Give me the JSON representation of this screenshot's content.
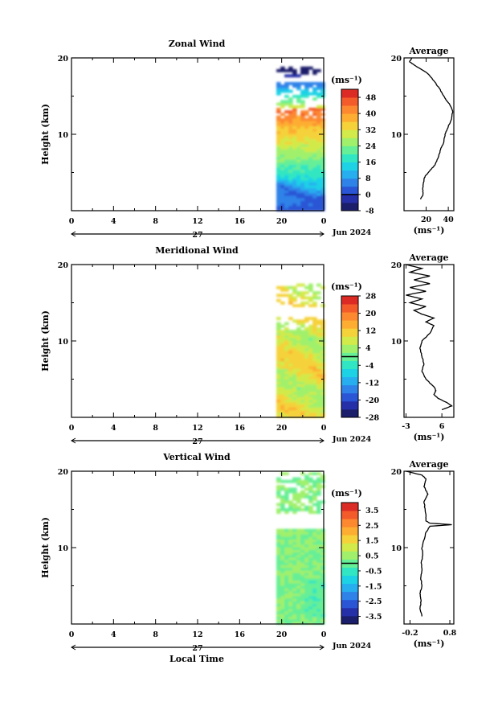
{
  "figure": {
    "x_label": "Local Time",
    "date_label": "Jun 2024",
    "day_label": "27",
    "x_ticks": [
      "0",
      "4",
      "8",
      "12",
      "16",
      "20",
      "0"
    ],
    "y_label": "Height (km)",
    "y_ticks": [
      "10",
      "20"
    ],
    "colorbar_unit": "(ms⁻¹)",
    "profile_title": "Average",
    "profile_unit": "(ms⁻¹)"
  },
  "chart_data": [
    {
      "type": "heatmap",
      "title": "Zonal Wind",
      "x_range_hours": [
        0,
        24
      ],
      "y_range_km": [
        0,
        20
      ],
      "data_time_range_hours": [
        19.5,
        24
      ],
      "colorbar": {
        "range": [
          -8,
          52
        ],
        "tick_labels": [
          "-8",
          "0",
          "8",
          "16",
          "24",
          "32",
          "40",
          "48"
        ],
        "colors": [
          "#1a1e6b",
          "#252fa8",
          "#2a56d6",
          "#2e82e8",
          "#27aeee",
          "#1ed2e6",
          "#31e6c2",
          "#66ef96",
          "#a0f06c",
          "#d2ea4a",
          "#f5d23a",
          "#fdae32",
          "#fc8830",
          "#f45b2b",
          "#dc2b25"
        ]
      },
      "profile": {
        "title": "Average",
        "x_range": [
          0,
          45
        ],
        "x_tick_labels": [
          "20",
          "40"
        ],
        "height_km": [
          1.5,
          2,
          3,
          4,
          4.5,
          5,
          5.5,
          6,
          7,
          8,
          9,
          10,
          11,
          12,
          13,
          14,
          14.5,
          15,
          16,
          17,
          18,
          19,
          19.5,
          20
        ],
        "values": [
          15,
          17,
          17,
          18,
          19,
          22,
          25,
          28,
          31,
          33,
          36,
          37,
          40,
          43,
          44,
          41,
          38,
          36,
          32,
          27,
          21,
          10,
          5,
          7
        ]
      }
    },
    {
      "type": "heatmap",
      "title": "Meridional Wind",
      "x_range_hours": [
        0,
        24
      ],
      "y_range_km": [
        0,
        20
      ],
      "data_time_range_hours": [
        19.5,
        24
      ],
      "colorbar": {
        "range": [
          -28,
          28
        ],
        "tick_labels": [
          "-28",
          "-20",
          "-12",
          "-4",
          "4",
          "12",
          "20",
          "28"
        ],
        "colors": [
          "#1a1e6b",
          "#252fa8",
          "#2a56d6",
          "#2e82e8",
          "#27aeee",
          "#1ed2e6",
          "#31e6c2",
          "#66ef96",
          "#a0f06c",
          "#d2ea4a",
          "#f5d23a",
          "#fdae32",
          "#fc8830",
          "#f45b2b",
          "#dc2b25"
        ]
      },
      "profile": {
        "title": "Average",
        "x_range": [
          -3.5,
          9
        ],
        "x_tick_labels": [
          "-3",
          "6"
        ],
        "height_km": [
          1,
          1.5,
          2,
          2.5,
          3,
          3.5,
          4,
          5,
          6,
          7,
          8,
          9,
          10,
          11,
          12,
          12.5,
          13,
          13.5,
          14,
          14.5,
          15,
          15.5,
          16,
          16.5,
          17,
          17.5,
          18,
          18.5,
          19,
          19.5,
          20
        ],
        "values": [
          6,
          8.5,
          7,
          5,
          4,
          4.5,
          4,
          2,
          1,
          1.5,
          1,
          0.5,
          1,
          3,
          4,
          2,
          4,
          1,
          -1,
          2,
          -2,
          1,
          -3,
          2,
          -2,
          3,
          -1,
          3,
          -2,
          1,
          -3
        ]
      }
    },
    {
      "type": "heatmap",
      "title": "Vertical Wind",
      "x_range_hours": [
        0,
        24
      ],
      "y_range_km": [
        0,
        20
      ],
      "data_time_range_hours": [
        19.5,
        24
      ],
      "colorbar": {
        "range": [
          -4,
          4
        ],
        "tick_labels": [
          "-3.5",
          "-2.5",
          "-1.5",
          "-0.5",
          "0.5",
          "1.5",
          "2.5",
          "3.5"
        ],
        "colors": [
          "#1a1e6b",
          "#252fa8",
          "#2a56d6",
          "#2e82e8",
          "#27aeee",
          "#1ed2e6",
          "#31e6c2",
          "#66ef96",
          "#a0f06c",
          "#d2ea4a",
          "#f5d23a",
          "#fdae32",
          "#fc8830",
          "#f45b2b",
          "#dc2b25"
        ]
      },
      "profile": {
        "title": "Average",
        "x_range": [
          -0.35,
          0.9
        ],
        "x_tick_labels": [
          "-0.2",
          "0.8"
        ],
        "height_km": [
          1,
          2,
          3,
          4,
          5,
          6,
          7,
          8,
          9,
          10,
          11,
          12,
          12.8,
          13,
          13.2,
          13.5,
          14,
          15,
          16,
          17,
          18,
          19,
          19.5,
          20
        ],
        "values": [
          0.1,
          0.05,
          0.08,
          0.05,
          0.1,
          0.07,
          0.1,
          0.08,
          0.12,
          0.1,
          0.15,
          0.2,
          0.3,
          0.85,
          0.3,
          0.2,
          0.2,
          0.18,
          0.15,
          0.25,
          0.15,
          0.2,
          0.1,
          -0.3
        ]
      }
    }
  ]
}
